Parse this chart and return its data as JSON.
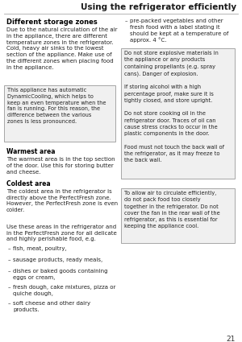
{
  "title": "Using the refrigerator efficiently",
  "page_number": "21",
  "bg_color": "#ffffff",
  "left_col": {
    "heading": "Different storage zones",
    "para1": "Due to the natural circulation of the air\nin the appliance, there are different\ntemperature zones in the refrigerator.\nCold, heavy air sinks to the lowest\nsection of the appliance. Make use of\nthe different zones when placing food\nin the appliance.",
    "box1": "This appliance has automatic\nDynamicCooling, which helps to\nkeep an even temperature when the\nfan is running. For this reason, the\ndifference between the various\nzones is less pronounced.",
    "subhead1": "Warmest area",
    "para2": "The warmest area is in the top section\nof the door. Use this for storing butter\nand cheese.",
    "subhead2": "Coldest area",
    "para3": "The coldest area in the refrigerator is\ndirectly above the PerfectFresh zone.\nHowever, the PerfectFresh zone is even\ncolder.",
    "para4": "Use these areas in the refrigerator and\nin the PerfectFresh zone for all delicate\nand highly perishable food, e.g.",
    "bullets": [
      "fish, meat, poultry,",
      "sausage products, ready meals,",
      "dishes or baked goods containing\neggs or cream,",
      "fresh dough, cake mixtures, pizza or\nquiche dough,",
      "soft cheese and other dairy\nproducts."
    ]
  },
  "right_col": {
    "bullet_item": "pre-packed vegetables and other\nfresh food with a label stating it\nshould be kept at a temperature of\napprox. 4 °C.",
    "box1": "Do not store explosive materials in\nthe appliance or any products\ncontaining propellants (e.g. spray\ncans). Danger of explosion.\n\nIf storing alcohol with a high\npercentage proof, make sure it is\ntightly closed, and store upright.\n\nDo not store cooking oil in the\nrefrigerator door. Traces of oil can\ncause stress cracks to occur in the\nplastic components in the door.\n\nFood must not touch the back wall of\nthe refrigerator, as it may freeze to\nthe back wall.",
    "box2": "To allow air to circulate efficiently,\ndo not pack food too closely\ntogether in the refrigerator. Do not\ncover the fan in the rear wall of the\nrefrigerator, as this is essential for\nkeeping the appliance cool."
  }
}
